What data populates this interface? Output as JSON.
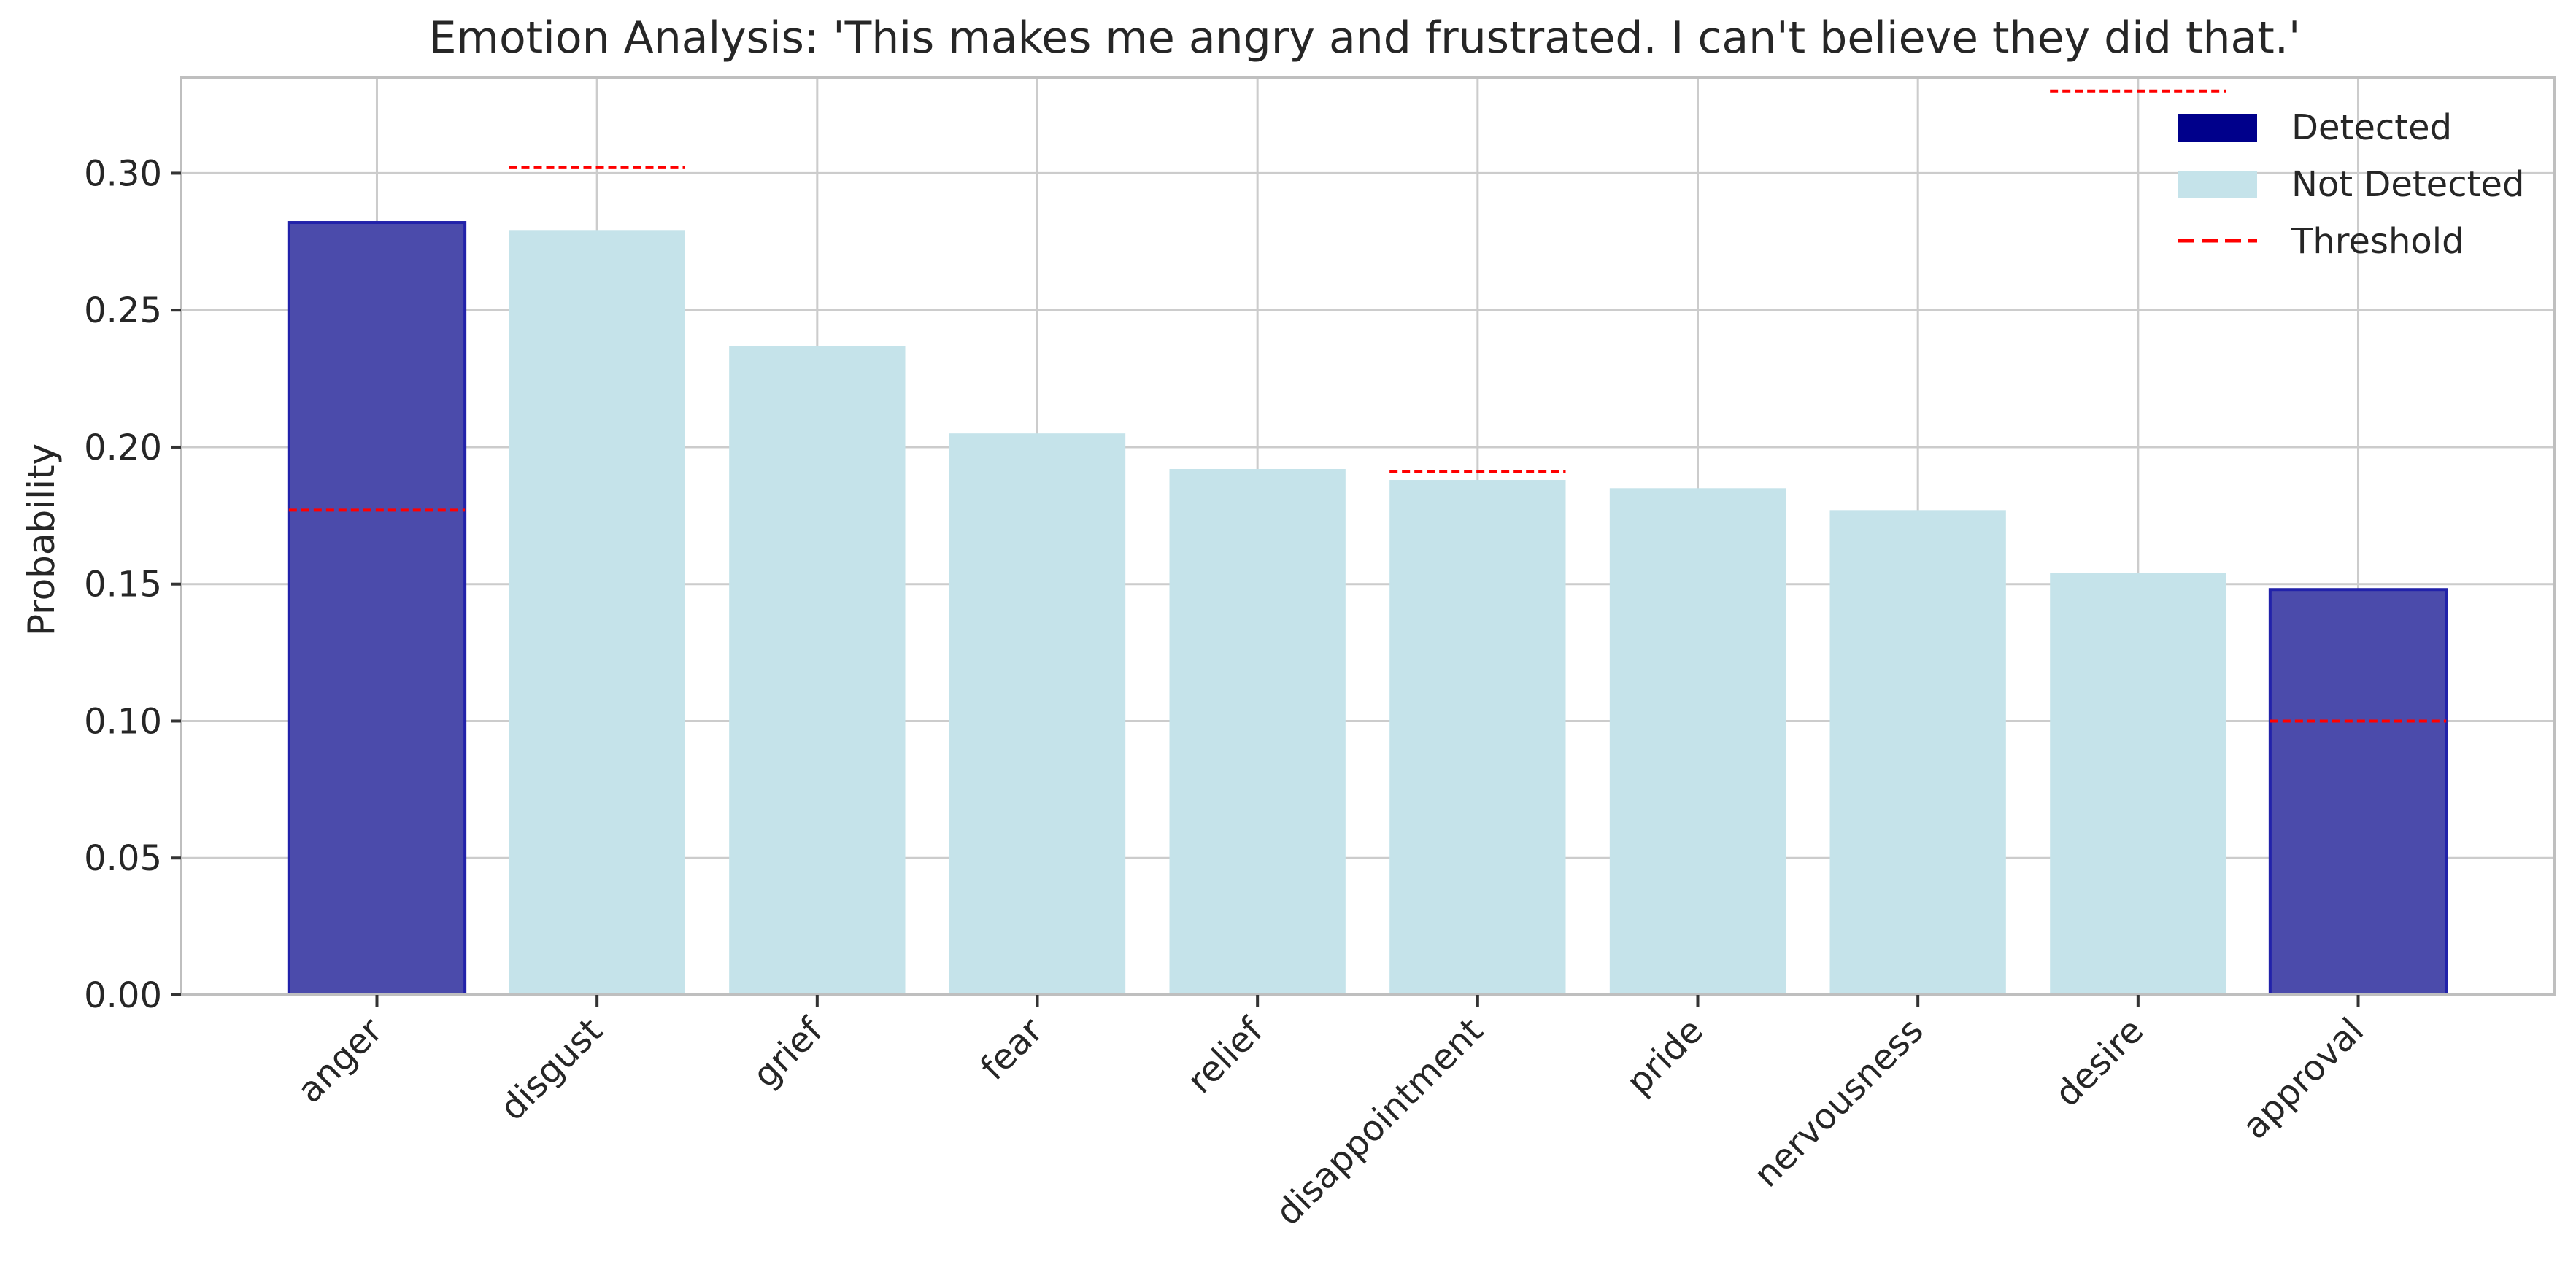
{
  "chart_data": {
    "type": "bar",
    "title": "Emotion Analysis: 'This makes me angry and frustrated. I can't believe they did that.'",
    "xlabel": "",
    "ylabel": "Probability",
    "ylim": [
      0,
      0.335
    ],
    "yticks": [
      "0.00",
      "0.05",
      "0.10",
      "0.15",
      "0.20",
      "0.25",
      "0.30"
    ],
    "grid": true,
    "legend_position": "top-right",
    "categories": [
      "anger",
      "disgust",
      "grief",
      "fear",
      "relief",
      "disappointment",
      "pride",
      "nervousness",
      "desire",
      "approval"
    ],
    "values": [
      0.282,
      0.279,
      0.237,
      0.205,
      0.192,
      0.188,
      0.185,
      0.177,
      0.154,
      0.148
    ],
    "detected": [
      true,
      false,
      false,
      false,
      false,
      false,
      false,
      false,
      false,
      true
    ],
    "thresholds": [
      0.177,
      0.302,
      null,
      null,
      null,
      0.191,
      null,
      null,
      0.33,
      0.1
    ],
    "legend": [
      {
        "label": "Detected",
        "kind": "patch",
        "color": "#00008b"
      },
      {
        "label": "Not Detected",
        "kind": "patch",
        "color": "#c5e3ea"
      },
      {
        "label": "Threshold",
        "kind": "dashed-line",
        "color": "#ff0000"
      }
    ],
    "colors": {
      "detected_fill": "#4b4bab",
      "detected_edge": "#2222aa",
      "not_detected_fill": "#c5e3ea",
      "threshold": "#ff0000",
      "grid": "#cccccc",
      "axis": "#bfbfbf",
      "text": "#262626"
    }
  }
}
